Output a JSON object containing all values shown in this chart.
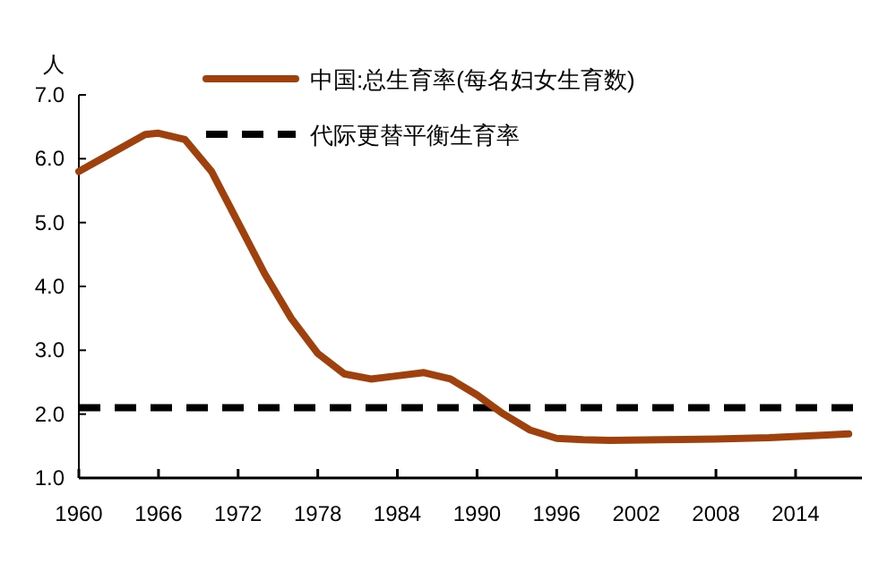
{
  "chart_data": {
    "type": "line",
    "ylabel": "人",
    "x": [
      1960,
      1963,
      1965,
      1966,
      1968,
      1970,
      1972,
      1974,
      1976,
      1978,
      1980,
      1982,
      1984,
      1986,
      1988,
      1990,
      1992,
      1994,
      1996,
      1998,
      2000,
      2004,
      2008,
      2012,
      2016,
      2018
    ],
    "series": [
      {
        "name": "中国:总生育率(每名妇女生育数)",
        "color": "#a0410d",
        "values": [
          5.8,
          6.15,
          6.38,
          6.4,
          6.3,
          5.8,
          5.0,
          4.2,
          3.5,
          2.95,
          2.63,
          2.55,
          2.6,
          2.65,
          2.55,
          2.3,
          2.0,
          1.75,
          1.62,
          1.6,
          1.59,
          1.6,
          1.61,
          1.63,
          1.67,
          1.69
        ]
      }
    ],
    "ref_lines": [
      {
        "axis": "y",
        "value": 2.1,
        "label": "代际更替平衡生育率",
        "color": "#000000",
        "line_style": "dashed"
      }
    ],
    "xlim": [
      1960,
      2019
    ],
    "xticks": [
      1960,
      1966,
      1972,
      1978,
      1984,
      1990,
      1996,
      2002,
      2008,
      2014
    ],
    "ylim": [
      1.0,
      7.0
    ],
    "yticks": [
      {
        "value": 1.0,
        "label": "1.0"
      },
      {
        "value": 2.0,
        "label": "2.0"
      },
      {
        "value": 3.0,
        "label": "3.0"
      },
      {
        "value": 4.0,
        "label": "4.0"
      },
      {
        "value": 5.0,
        "label": "5.0"
      },
      {
        "value": 6.0,
        "label": "6.0"
      },
      {
        "value": 7.0,
        "label": "7.0"
      }
    ],
    "grid": false,
    "legend": "top",
    "marker": "none",
    "line_style": "solid"
  }
}
